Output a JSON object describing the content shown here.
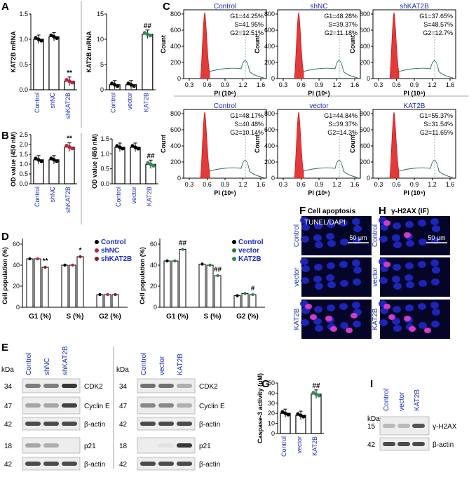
{
  "panels": {
    "A": "A",
    "B": "B",
    "C": "C",
    "D": "D",
    "E": "E",
    "F": "F",
    "G": "G",
    "H": "H",
    "I": "I"
  },
  "panelA": {
    "left": {
      "ylabel": "KAT2B mRNA",
      "yticks": [
        "0.0",
        "0.5",
        "1.0",
        "1.5"
      ],
      "categories": [
        "Control",
        "shNC",
        "shKAT2B"
      ],
      "values": [
        1.0,
        1.05,
        0.17
      ],
      "mark": "**"
    },
    "right": {
      "ylabel": "KAT2B mRNA",
      "yticks": [
        "0",
        "5",
        "10",
        "15"
      ],
      "categories": [
        "Control",
        "vector",
        "KAT2B"
      ],
      "values": [
        1.0,
        1.0,
        11.0
      ],
      "mark": "##"
    }
  },
  "panelB": {
    "left": {
      "ylabel": "OD value (450 nM)",
      "yticks": [
        "0.0",
        "0.5",
        "1.0",
        "1.5",
        "2.0",
        "2.5"
      ],
      "categories": [
        "Control",
        "shNC",
        "shKAT2B"
      ],
      "values": [
        1.22,
        1.22,
        1.87
      ],
      "mark": "**"
    },
    "right": {
      "ylabel": "OD value (450 nM)",
      "yticks": [
        "0.0",
        "0.5",
        "1.0",
        "1.5"
      ],
      "categories": [
        "Control",
        "vector",
        "KAT2B"
      ],
      "values": [
        1.22,
        1.22,
        0.65
      ],
      "mark": "##"
    }
  },
  "panelC": {
    "ylabel": "Count",
    "xlabel": "PI (10⁶)",
    "yticks": [
      "0",
      "200",
      "400",
      "600",
      "800"
    ],
    "xticks": [
      "0.3",
      "0.6",
      "0.9",
      "1.2",
      "1.6"
    ],
    "plots": [
      {
        "title": "Control",
        "g1": "G1=44.25%",
        "s": "S=41.95%",
        "g2": "G2=12.51%"
      },
      {
        "title": "shNC",
        "g1": "G1=48.28%",
        "s": "S=39.37%",
        "g2": "G2=11.18%"
      },
      {
        "title": "shKAT2B",
        "g1": "G1=37.65%",
        "s": "S=48.57%",
        "g2": "G2=12.7%"
      },
      {
        "title": "Control",
        "g1": "G1=48.17%",
        "s": "S=40.48%",
        "g2": "G2=10.14%"
      },
      {
        "title": "vector",
        "g1": "G1=44.84%",
        "s": "S=39.37%",
        "g2": "G2=14.3%"
      },
      {
        "title": "KAT2B",
        "g1": "G1=55.37%",
        "s": "S=31.54%",
        "g2": "G2=11.65%"
      }
    ]
  },
  "panelD": {
    "ylabel": "Cell population (%)",
    "yticks": [
      "0",
      "20",
      "40",
      "60"
    ],
    "groups": [
      "G1 (%)",
      "S (%)",
      "G2 (%)"
    ],
    "left": {
      "legend": [
        "Control",
        "shNC",
        "shKAT2B"
      ],
      "colors": [
        "#000000",
        "#c0213a",
        "#8b1a1a"
      ],
      "values": [
        [
          46,
          46,
          38
        ],
        [
          40,
          40,
          48
        ],
        [
          12,
          12,
          12
        ]
      ],
      "marks": [
        [
          "",
          "",
          "**"
        ],
        [
          "",
          "",
          "*"
        ],
        [
          "",
          "",
          ""
        ]
      ]
    },
    "right": {
      "legend": [
        "Control",
        "vector",
        "KAT2B"
      ],
      "colors": [
        "#000000",
        "#2f7a33",
        "#2f8a4f"
      ],
      "values": [
        [
          44,
          44,
          55
        ],
        [
          41,
          40,
          30
        ],
        [
          11,
          13,
          12
        ]
      ],
      "marks": [
        [
          "",
          "",
          "##"
        ],
        [
          "",
          "",
          "##"
        ],
        [
          "",
          "",
          "#"
        ]
      ]
    }
  },
  "panelE": {
    "kda": "kDa",
    "left": {
      "lanes": [
        "Control",
        "shNC",
        "shKAT2B"
      ],
      "mw": [
        "34",
        "47",
        "42",
        "18",
        "42"
      ],
      "bands": [
        "CDK2",
        "Cyclin E",
        "β-actin",
        "p21",
        "β-actin"
      ]
    },
    "right": {
      "lanes": [
        "Control",
        "vector",
        "KAT2B"
      ],
      "mw": [
        "34",
        "47",
        "42",
        "18",
        "42"
      ],
      "bands": [
        "CDK2",
        "Cyclin E",
        "β-actin",
        "p21",
        "β-actin"
      ]
    }
  },
  "panelF": {
    "title": "Cell apoptosis",
    "stain": "TUNEL/DAPI",
    "scale": "50 μm",
    "rows": [
      "Control",
      "vector",
      "KAT2B"
    ]
  },
  "panelG": {
    "ylabel": "Caspase-3 activity (μM)",
    "yticks": [
      "0",
      "10",
      "20",
      "30",
      "40",
      "50"
    ],
    "categories": [
      "Control",
      "vector",
      "KAT2B"
    ],
    "values": [
      20,
      18,
      39
    ],
    "mark": "##"
  },
  "panelH": {
    "title": "γ-H2AX (IF)",
    "scale": "50 μm",
    "rows": [
      "Control",
      "vector",
      "KAT2B"
    ]
  },
  "panelI": {
    "kda": "kDa",
    "lanes": [
      "Control",
      "vector",
      "KAT2B"
    ],
    "mw": [
      "15",
      "42"
    ],
    "bands": [
      "γ-H2AX",
      "β-actin"
    ]
  }
}
